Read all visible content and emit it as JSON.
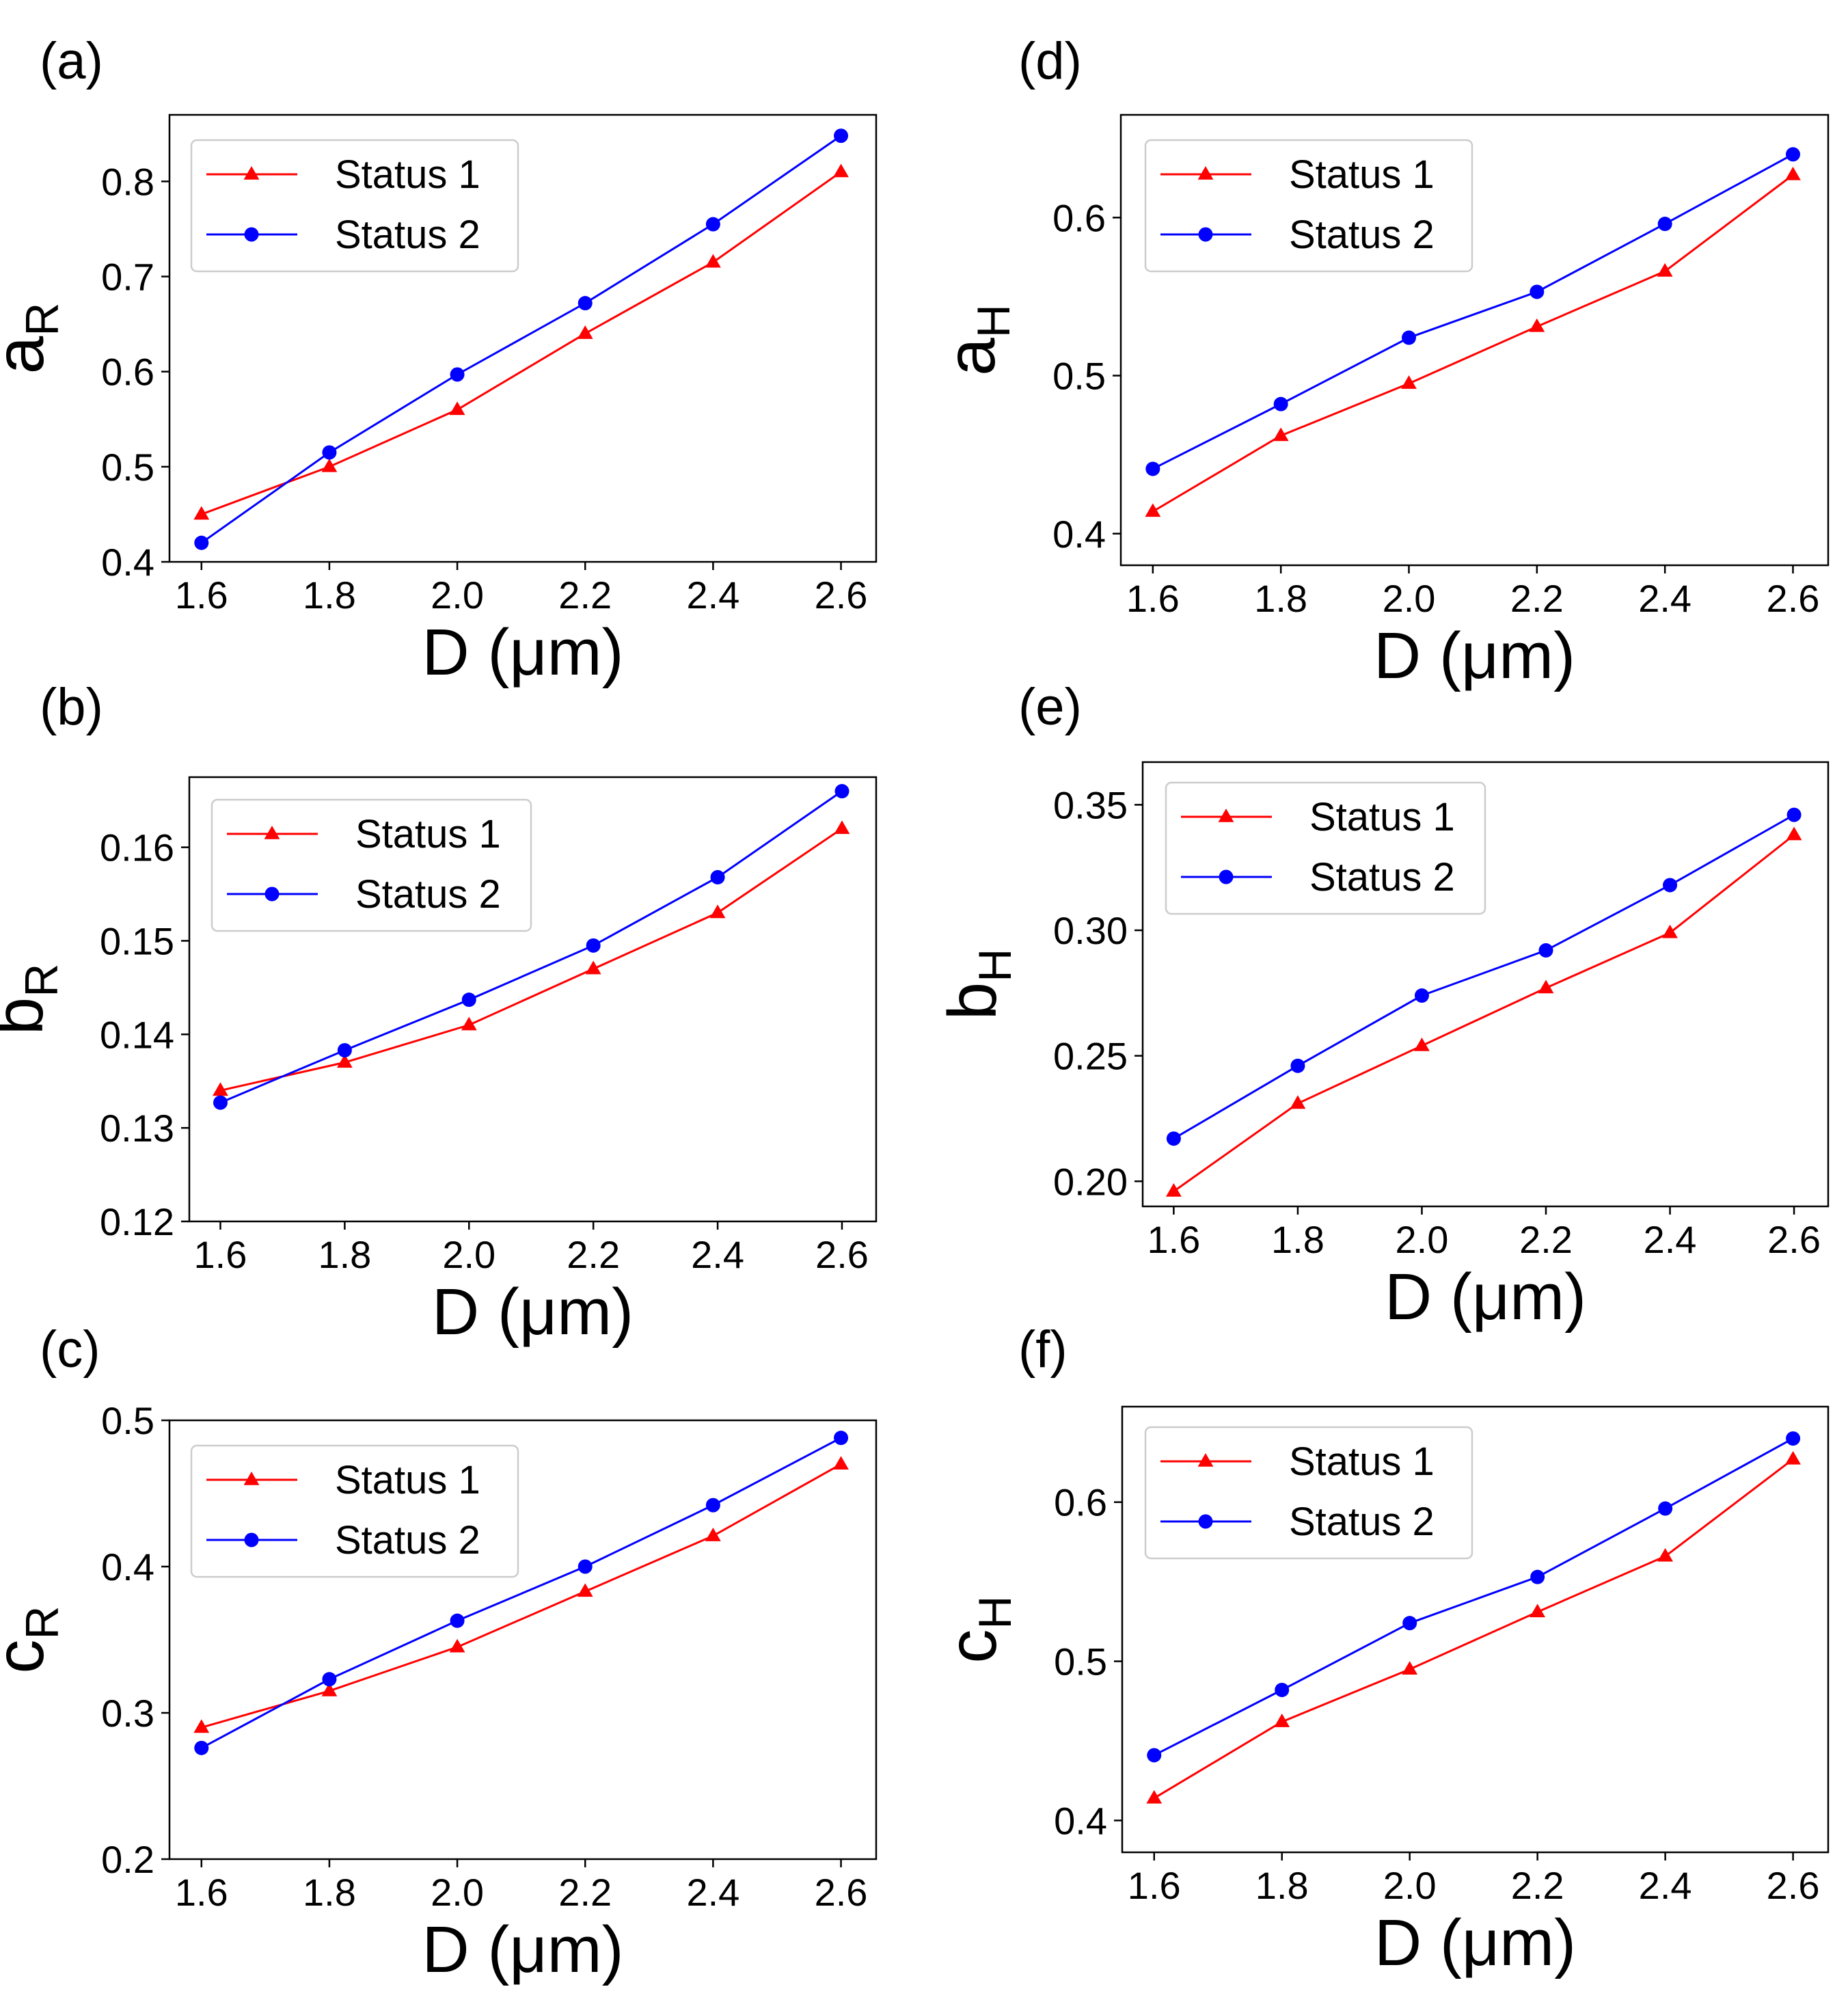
{
  "chart_data": [
    {
      "panel": "(a)",
      "type": "line",
      "ylabel_main": "a",
      "ylabel_sub": "R",
      "xlabel": "D (μm)",
      "x": [
        1.6,
        1.8,
        2.0,
        2.2,
        2.4,
        2.6
      ],
      "xticks": [
        "1.6",
        "1.8",
        "2.0",
        "2.2",
        "2.4",
        "2.6"
      ],
      "yticks": [
        "0.4",
        "0.5",
        "0.6",
        "0.7",
        "0.8"
      ],
      "xlim": [
        1.55,
        2.655
      ],
      "ylim": [
        0.4,
        0.87
      ],
      "legend": "top-left",
      "series": [
        {
          "name": "Status 1",
          "color": "#ff0000",
          "marker": "triangle",
          "values": [
            0.45,
            0.5,
            0.56,
            0.64,
            0.715,
            0.81
          ]
        },
        {
          "name": "Status 2",
          "color": "#0000ff",
          "marker": "circle",
          "values": [
            0.42,
            0.515,
            0.597,
            0.672,
            0.755,
            0.848
          ]
        }
      ]
    },
    {
      "panel": "(b)",
      "type": "line",
      "ylabel_main": "b",
      "ylabel_sub": "R",
      "xlabel": "D (μm)",
      "x": [
        1.6,
        1.8,
        2.0,
        2.2,
        2.4,
        2.6
      ],
      "xticks": [
        "1.6",
        "1.8",
        "2.0",
        "2.2",
        "2.4",
        "2.6"
      ],
      "yticks": [
        "0.12",
        "0.13",
        "0.14",
        "0.15",
        "0.16"
      ],
      "xlim": [
        1.55,
        2.655
      ],
      "ylim": [
        0.12,
        0.1675
      ],
      "legend": "top-left",
      "series": [
        {
          "name": "Status 1",
          "color": "#ff0000",
          "marker": "triangle",
          "values": [
            0.134,
            0.137,
            0.141,
            0.147,
            0.153,
            0.162
          ]
        },
        {
          "name": "Status 2",
          "color": "#0000ff",
          "marker": "circle",
          "values": [
            0.1327,
            0.1383,
            0.1437,
            0.1495,
            0.1568,
            0.166
          ]
        }
      ]
    },
    {
      "panel": "(c)",
      "type": "line",
      "ylabel_main": "c",
      "ylabel_sub": "R",
      "xlabel": "D (μm)",
      "x": [
        1.6,
        1.8,
        2.0,
        2.2,
        2.4,
        2.6
      ],
      "xticks": [
        "1.6",
        "1.8",
        "2.0",
        "2.2",
        "2.4",
        "2.6"
      ],
      "yticks": [
        "0.2",
        "0.3",
        "0.4",
        "0.5"
      ],
      "xlim": [
        1.55,
        2.655
      ],
      "ylim": [
        0.2,
        0.5
      ],
      "legend": "top-left",
      "series": [
        {
          "name": "Status 1",
          "color": "#ff0000",
          "marker": "triangle",
          "values": [
            0.29,
            0.315,
            0.345,
            0.383,
            0.421,
            0.47
          ]
        },
        {
          "name": "Status 2",
          "color": "#0000ff",
          "marker": "circle",
          "values": [
            0.276,
            0.323,
            0.363,
            0.4,
            0.442,
            0.488
          ]
        }
      ]
    },
    {
      "panel": "(d)",
      "type": "line",
      "ylabel_main": "a",
      "ylabel_sub": "H",
      "xlabel": "D (μm)",
      "x": [
        1.6,
        1.8,
        2.0,
        2.2,
        2.4,
        2.6
      ],
      "xticks": [
        "1.6",
        "1.8",
        "2.0",
        "2.2",
        "2.4",
        "2.6"
      ],
      "yticks": [
        "0.4",
        "0.5",
        "0.6"
      ],
      "xlim": [
        1.55,
        2.655
      ],
      "ylim": [
        0.38,
        0.665
      ],
      "legend": "top-left",
      "series": [
        {
          "name": "Status 1",
          "color": "#ff0000",
          "marker": "triangle",
          "values": [
            0.414,
            0.462,
            0.495,
            0.531,
            0.566,
            0.627
          ]
        },
        {
          "name": "Status 2",
          "color": "#0000ff",
          "marker": "circle",
          "values": [
            0.441,
            0.482,
            0.524,
            0.553,
            0.596,
            0.64
          ]
        }
      ]
    },
    {
      "panel": "(e)",
      "type": "line",
      "ylabel_main": "b",
      "ylabel_sub": "H",
      "xlabel": "D (μm)",
      "x": [
        1.6,
        1.8,
        2.0,
        2.2,
        2.4,
        2.6
      ],
      "xticks": [
        "1.6",
        "1.8",
        "2.0",
        "2.2",
        "2.4",
        "2.6"
      ],
      "yticks": [
        "0.20",
        "0.25",
        "0.30",
        "0.35"
      ],
      "xlim": [
        1.55,
        2.655
      ],
      "ylim": [
        0.19,
        0.367
      ],
      "legend": "top-left",
      "series": [
        {
          "name": "Status 1",
          "color": "#ff0000",
          "marker": "triangle",
          "values": [
            0.196,
            0.231,
            0.254,
            0.277,
            0.299,
            0.338
          ]
        },
        {
          "name": "Status 2",
          "color": "#0000ff",
          "marker": "circle",
          "values": [
            0.217,
            0.246,
            0.274,
            0.292,
            0.318,
            0.346
          ]
        }
      ]
    },
    {
      "panel": "(f)",
      "type": "line",
      "ylabel_main": "c",
      "ylabel_sub": "H",
      "xlabel": "D (μm)",
      "x": [
        1.6,
        1.8,
        2.0,
        2.2,
        2.4,
        2.6
      ],
      "xticks": [
        "1.6",
        "1.8",
        "2.0",
        "2.2",
        "2.4",
        "2.6"
      ],
      "yticks": [
        "0.4",
        "0.5",
        "0.6"
      ],
      "xlim": [
        1.55,
        2.655
      ],
      "ylim": [
        0.38,
        0.66
      ],
      "legend": "top-left",
      "series": [
        {
          "name": "Status 1",
          "color": "#ff0000",
          "marker": "triangle",
          "values": [
            0.414,
            0.462,
            0.495,
            0.531,
            0.566,
            0.627
          ]
        },
        {
          "name": "Status 2",
          "color": "#0000ff",
          "marker": "circle",
          "values": [
            0.441,
            0.482,
            0.524,
            0.553,
            0.596,
            0.64
          ]
        }
      ]
    }
  ]
}
